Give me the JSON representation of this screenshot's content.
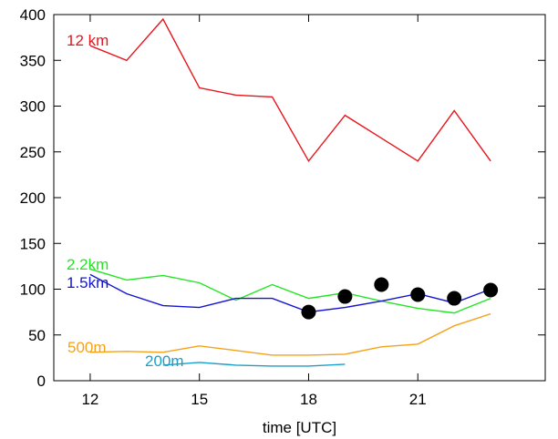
{
  "chart_data": {
    "type": "line",
    "title": "",
    "xlabel": "time [UTC]",
    "ylabel": "",
    "xlim": [
      11,
      24.5
    ],
    "ylim": [
      0,
      400
    ],
    "xticks": [
      "12",
      "15",
      "18",
      "21"
    ],
    "yticks": [
      "0",
      "50",
      "100",
      "150",
      "200",
      "250",
      "300",
      "350",
      "400"
    ],
    "grid": false,
    "series": [
      {
        "name": "12 km",
        "color": "#e8141b",
        "x": [
          12,
          13,
          14,
          15,
          16,
          17,
          18,
          19,
          20,
          21,
          22,
          23
        ],
        "y": [
          366,
          350,
          395,
          320,
          312,
          310,
          240,
          290,
          265,
          240,
          295,
          240
        ]
      },
      {
        "name": "2.2km",
        "color": "#22e622",
        "x": [
          12,
          13,
          14,
          15,
          16,
          17,
          18,
          19,
          20,
          21,
          22,
          23
        ],
        "y": [
          122,
          110,
          115,
          107,
          88,
          105,
          90,
          96,
          87,
          79,
          74,
          90
        ]
      },
      {
        "name": "1.5km",
        "color": "#1414d2",
        "x": [
          12,
          13,
          14,
          15,
          16,
          17,
          18,
          19,
          20,
          21,
          22,
          23
        ],
        "y": [
          116,
          95,
          82,
          80,
          90,
          90,
          75,
          80,
          87,
          95,
          85,
          100
        ]
      },
      {
        "name": "500m",
        "color": "#f5a21a",
        "x": [
          12,
          13,
          14,
          15,
          16,
          17,
          18,
          19,
          20,
          21,
          22,
          23
        ],
        "y": [
          31,
          32,
          31,
          38,
          33,
          28,
          28,
          29,
          37,
          40,
          60,
          73
        ]
      },
      {
        "name": "200m",
        "color": "#1aa0c8",
        "x": [
          14,
          15,
          16,
          17,
          18,
          19
        ],
        "y": [
          17,
          20,
          17,
          16,
          16,
          18
        ]
      }
    ],
    "observations": {
      "color": "#000000",
      "x": [
        18,
        19,
        20,
        21,
        22,
        23
      ],
      "y": [
        75,
        92,
        105,
        94,
        90,
        99
      ]
    }
  }
}
